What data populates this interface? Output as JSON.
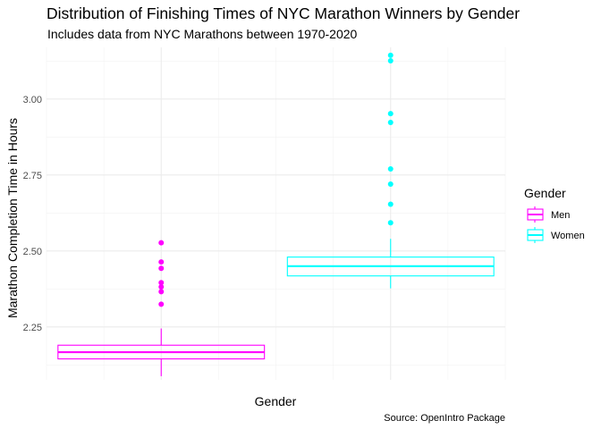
{
  "chart_data": {
    "type": "boxplot",
    "title": "Distribution of Finishing Times of NYC Marathon Winners by Gender",
    "subtitle": "Includes data from NYC Marathons between 1970-2020",
    "xlabel": "Gender",
    "ylabel": "Marathon Completion Time in Hours",
    "caption": "Source: OpenIntro Package",
    "ylim": [
      2.076,
      3.17
    ],
    "yticks": [
      2.25,
      2.5,
      2.75,
      3.0
    ],
    "ytick_labels": [
      "2.25",
      "2.50",
      "2.75",
      "3.00"
    ],
    "grid": true,
    "legend": {
      "title": "Gender",
      "position": "right"
    },
    "series": [
      {
        "name": "Men",
        "color": "#ff00ff",
        "whisker_low": 2.088,
        "q1": 2.145,
        "median": 2.167,
        "q3": 2.19,
        "whisker_high": 2.245,
        "outliers": [
          2.527,
          2.464,
          2.443,
          2.396,
          2.382,
          2.366,
          2.325
        ]
      },
      {
        "name": "Women",
        "color": "#00ffff",
        "whisker_low": 2.377,
        "q1": 2.418,
        "median": 2.45,
        "q3": 2.48,
        "whisker_high": 2.54,
        "outliers": [
          3.144,
          3.126,
          2.952,
          2.923,
          2.77,
          2.72,
          2.654,
          2.593
        ]
      }
    ]
  }
}
